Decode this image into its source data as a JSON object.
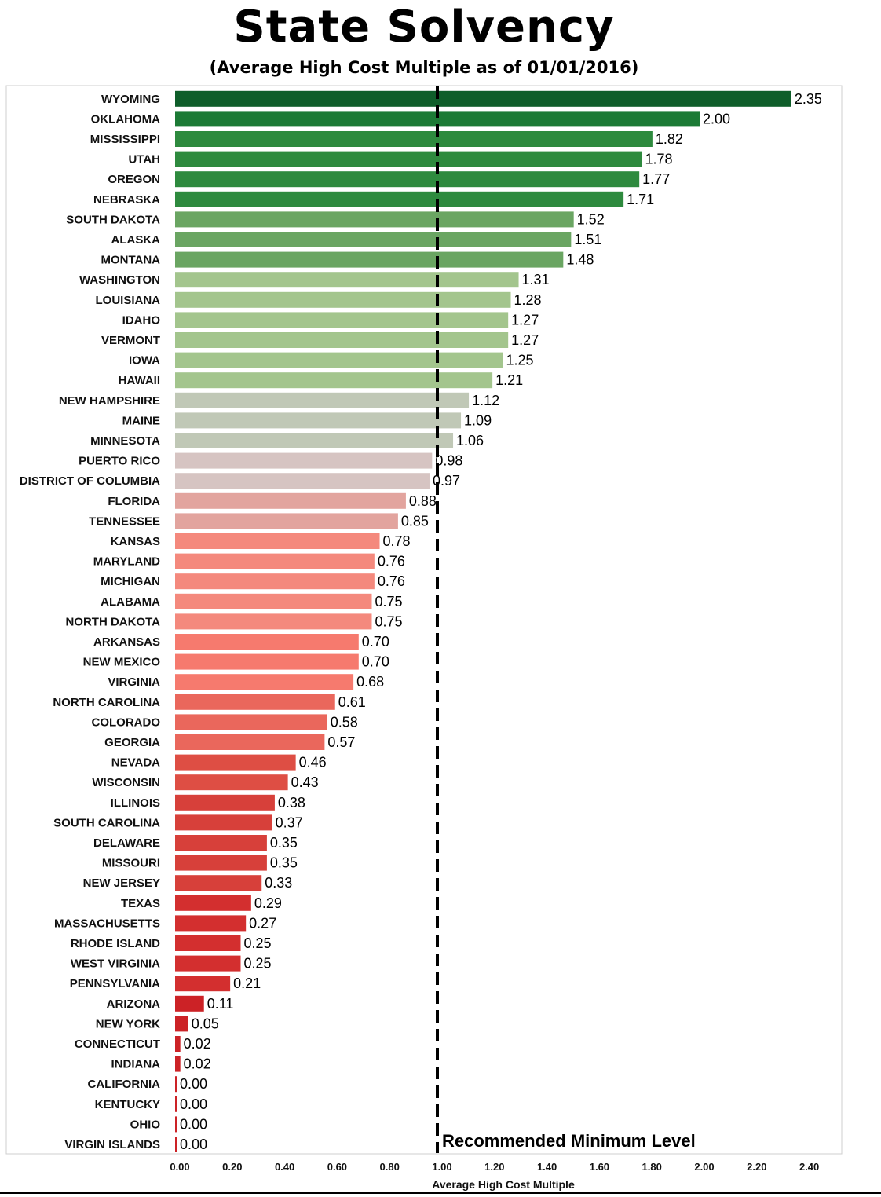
{
  "chart_data": {
    "type": "bar",
    "orientation": "horizontal",
    "title": "State Solvency",
    "subtitle": "(Average High Cost Multiple as of 01/01/2016)",
    "xlabel": "Average High Cost Multiple",
    "xlim": [
      0,
      2.5
    ],
    "xticks": [
      "0.00",
      "0.20",
      "0.40",
      "0.60",
      "0.80",
      "1.00",
      "1.20",
      "1.40",
      "1.60",
      "1.80",
      "2.00",
      "2.20",
      "2.40"
    ],
    "reference_line": {
      "value": 1.0,
      "label": "Recommended Minimum Level",
      "style": "dashed",
      "color": "#000000"
    },
    "categories": [
      "WYOMING",
      "OKLAHOMA",
      "MISSISSIPPI",
      "UTAH",
      "OREGON",
      "NEBRASKA",
      "SOUTH DAKOTA",
      "ALASKA",
      "MONTANA",
      "WASHINGTON",
      "LOUISIANA",
      "IDAHO",
      "VERMONT",
      "IOWA",
      "HAWAII",
      "NEW HAMPSHIRE",
      "MAINE",
      "MINNESOTA",
      "PUERTO RICO",
      "DISTRICT OF COLUMBIA",
      "FLORIDA",
      "TENNESSEE",
      "KANSAS",
      "MARYLAND",
      "MICHIGAN",
      "ALABAMA",
      "NORTH DAKOTA",
      "ARKANSAS",
      "NEW MEXICO",
      "VIRGINIA",
      "NORTH CAROLINA",
      "COLORADO",
      "GEORGIA",
      "NEVADA",
      "WISCONSIN",
      "ILLINOIS",
      "SOUTH CAROLINA",
      "DELAWARE",
      "MISSOURI",
      "NEW JERSEY",
      "TEXAS",
      "MASSACHUSETTS",
      "RHODE ISLAND",
      "WEST VIRGINIA",
      "PENNSYLVANIA",
      "ARIZONA",
      "NEW YORK",
      "CONNECTICUT",
      "INDIANA",
      "CALIFORNIA",
      "KENTUCKY",
      "OHIO",
      "VIRGIN ISLANDS"
    ],
    "values": [
      2.35,
      2.0,
      1.82,
      1.78,
      1.77,
      1.71,
      1.52,
      1.51,
      1.48,
      1.31,
      1.28,
      1.27,
      1.27,
      1.25,
      1.21,
      1.12,
      1.09,
      1.06,
      0.98,
      0.97,
      0.88,
      0.85,
      0.78,
      0.76,
      0.76,
      0.75,
      0.75,
      0.7,
      0.7,
      0.68,
      0.61,
      0.58,
      0.57,
      0.46,
      0.43,
      0.38,
      0.37,
      0.35,
      0.35,
      0.33,
      0.29,
      0.27,
      0.25,
      0.25,
      0.21,
      0.11,
      0.05,
      0.02,
      0.02,
      0.0,
      0.0,
      0.0,
      0.0
    ],
    "value_labels": [
      "2.35",
      "2.00",
      "1.82",
      "1.78",
      "1.77",
      "1.71",
      "1.52",
      "1.51",
      "1.48",
      "1.31",
      "1.28",
      "1.27",
      "1.27",
      "1.25",
      "1.21",
      "1.12",
      "1.09",
      "1.06",
      "0.98",
      "0.97",
      "0.88",
      "0.85",
      "0.78",
      "0.76",
      "0.76",
      "0.75",
      "0.75",
      "0.70",
      "0.70",
      "0.68",
      "0.61",
      "0.58",
      "0.57",
      "0.46",
      "0.43",
      "0.38",
      "0.37",
      "0.35",
      "0.35",
      "0.33",
      "0.29",
      "0.27",
      "0.25",
      "0.25",
      "0.21",
      "0.11",
      "0.05",
      "0.02",
      "0.02",
      "0.00",
      "0.00",
      "0.00",
      "0.00"
    ],
    "colors": [
      "#0f5e2a",
      "#1c7a35",
      "#2e8a3e",
      "#2e8a3e",
      "#2e8a3e",
      "#2e8a3e",
      "#6aa562",
      "#6aa562",
      "#6aa562",
      "#a3c58d",
      "#a3c58d",
      "#a3c58d",
      "#a3c58d",
      "#a3c58d",
      "#a3c58d",
      "#c0c8b6",
      "#c0c8b6",
      "#c0c8b6",
      "#d6c4c2",
      "#d6c4c2",
      "#e2a49e",
      "#e2a49e",
      "#f4897d",
      "#f4897d",
      "#f4897d",
      "#f4897d",
      "#f4897d",
      "#f67a6e",
      "#f67a6e",
      "#f67a6e",
      "#ea675c",
      "#ea675c",
      "#ea675c",
      "#de4e44",
      "#de4e44",
      "#d7403a",
      "#d7403a",
      "#d7403a",
      "#d7403a",
      "#d7403a",
      "#d32f2f",
      "#d32f2f",
      "#d32f2f",
      "#d32f2f",
      "#d32f2f",
      "#cc2226",
      "#cc2226",
      "#cc2226",
      "#cc2226",
      "#cc2226",
      "#cc2226",
      "#cc2226",
      "#cc2226"
    ],
    "grid": false,
    "legend": "none"
  }
}
